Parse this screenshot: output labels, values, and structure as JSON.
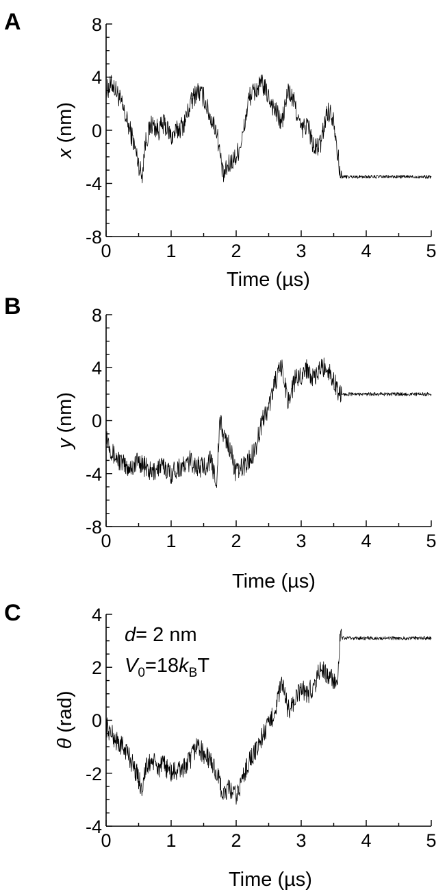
{
  "chart_data": [
    {
      "type": "line",
      "panel": "A",
      "xlabel": "Time (µs)",
      "ylabel": "x (nm)",
      "ylabel_italic": "x",
      "ylabel_rest": " (nm)",
      "xlim": [
        0,
        5
      ],
      "ylim": [
        -8,
        8
      ],
      "xticks": [
        "0",
        "1",
        "2",
        "3",
        "4",
        "5"
      ],
      "yticks": [
        "-8",
        "-4",
        "0",
        "4",
        "8"
      ],
      "series": [
        {
          "x": [
            0,
            0.1,
            0.2,
            0.3,
            0.4,
            0.5,
            0.55,
            0.6,
            0.7,
            0.8,
            0.9,
            1.0,
            1.1,
            1.2,
            1.3,
            1.4,
            1.5,
            1.6,
            1.7,
            1.8,
            1.9,
            2.0,
            2.1,
            2.2,
            2.3,
            2.4,
            2.5,
            2.6,
            2.7,
            2.8,
            2.9,
            3.0,
            3.1,
            3.2,
            3.3,
            3.4,
            3.5,
            3.6,
            3.7,
            3.8,
            3.9,
            4.0,
            4.2,
            4.4,
            4.6,
            4.8,
            5.0
          ],
          "y": [
            3.0,
            3.5,
            2.5,
            1.0,
            -0.5,
            -2.5,
            -3.5,
            -1.0,
            0.5,
            0.0,
            0.5,
            -0.5,
            0.0,
            0.5,
            2.0,
            3.0,
            2.5,
            1.0,
            0.0,
            -3.5,
            -2.5,
            -2.0,
            -0.5,
            2.5,
            3.0,
            3.5,
            2.5,
            1.5,
            0.5,
            3.0,
            2.0,
            0.0,
            0.5,
            -1.5,
            -1.0,
            1.5,
            1.0,
            -3.5,
            -3.5,
            -3.5,
            -3.5,
            -3.5,
            -3.5,
            -3.5,
            -3.5,
            -3.5,
            -3.5
          ]
        }
      ],
      "annotations": []
    },
    {
      "type": "line",
      "panel": "B",
      "xlabel": "Time (µs)",
      "ylabel": "y (nm)",
      "ylabel_italic": "y",
      "ylabel_rest": " (nm)",
      "xlim": [
        0,
        5
      ],
      "ylim": [
        -8,
        8
      ],
      "xticks": [
        "0",
        "1",
        "2",
        "3",
        "4",
        "5"
      ],
      "yticks": [
        "-8",
        "-4",
        "0",
        "4",
        "8"
      ],
      "series": [
        {
          "x": [
            0,
            0.1,
            0.2,
            0.3,
            0.4,
            0.5,
            0.6,
            0.7,
            0.8,
            0.9,
            1.0,
            1.1,
            1.2,
            1.3,
            1.4,
            1.5,
            1.6,
            1.7,
            1.75,
            1.8,
            1.9,
            2.0,
            2.1,
            2.2,
            2.3,
            2.4,
            2.5,
            2.6,
            2.7,
            2.8,
            2.9,
            3.0,
            3.1,
            3.2,
            3.3,
            3.4,
            3.5,
            3.6,
            3.7,
            3.8,
            4.0,
            4.2,
            4.4,
            4.6,
            4.8,
            5.0
          ],
          "y": [
            -1.0,
            -2.5,
            -3.0,
            -3.5,
            -3.5,
            -3.0,
            -3.5,
            -4.0,
            -3.5,
            -3.5,
            -4.0,
            -3.5,
            -3.5,
            -3.0,
            -3.5,
            -3.5,
            -3.0,
            -4.5,
            0.0,
            -1.0,
            -2.0,
            -4.0,
            -3.5,
            -3.0,
            -2.0,
            0.0,
            1.0,
            3.0,
            4.0,
            1.5,
            3.0,
            3.5,
            4.0,
            3.0,
            4.0,
            4.0,
            3.0,
            2.0,
            2.0,
            2.0,
            2.0,
            2.0,
            2.0,
            2.0,
            2.0,
            2.0
          ]
        }
      ],
      "annotations": []
    },
    {
      "type": "line",
      "panel": "C",
      "xlabel": "Time (µs)",
      "ylabel": "θ (rad)",
      "ylabel_italic": "θ",
      "ylabel_rest": " (rad)",
      "xlim": [
        0,
        5
      ],
      "ylim": [
        -4,
        4
      ],
      "xticks": [
        "0",
        "1",
        "2",
        "3",
        "4",
        "5"
      ],
      "yticks": [
        "-4",
        "-2",
        "0",
        "2",
        "4"
      ],
      "series": [
        {
          "x": [
            0,
            0.1,
            0.2,
            0.3,
            0.4,
            0.5,
            0.55,
            0.6,
            0.7,
            0.8,
            0.9,
            1.0,
            1.1,
            1.2,
            1.3,
            1.4,
            1.5,
            1.6,
            1.7,
            1.8,
            1.9,
            2.0,
            2.1,
            2.2,
            2.3,
            2.4,
            2.5,
            2.6,
            2.7,
            2.8,
            2.9,
            3.0,
            3.1,
            3.2,
            3.3,
            3.4,
            3.5,
            3.55,
            3.6,
            3.7,
            3.8,
            4.0,
            4.2,
            4.4,
            4.6,
            4.8,
            5.0
          ],
          "y": [
            -0.2,
            -0.6,
            -0.9,
            -1.1,
            -1.6,
            -2.2,
            -2.6,
            -1.9,
            -1.5,
            -1.8,
            -1.7,
            -2.0,
            -1.9,
            -1.8,
            -1.5,
            -0.9,
            -1.3,
            -1.5,
            -2.0,
            -2.8,
            -2.6,
            -2.9,
            -2.2,
            -1.5,
            -1.2,
            -0.6,
            -0.2,
            0.4,
            1.4,
            0.4,
            0.7,
            1.2,
            1.0,
            1.3,
            2.0,
            1.7,
            1.5,
            1.1,
            3.1,
            3.1,
            3.1,
            3.1,
            3.1,
            3.1,
            3.1,
            3.1,
            3.1
          ]
        }
      ],
      "annotations": [
        {
          "prefix_italic": "d",
          "text": "= 2 nm"
        },
        {
          "v_italic": "V",
          "v_sub": "0",
          "mid": "=18",
          "k_italic": "k",
          "k_sub": "B",
          "suffix": "T"
        }
      ]
    }
  ]
}
